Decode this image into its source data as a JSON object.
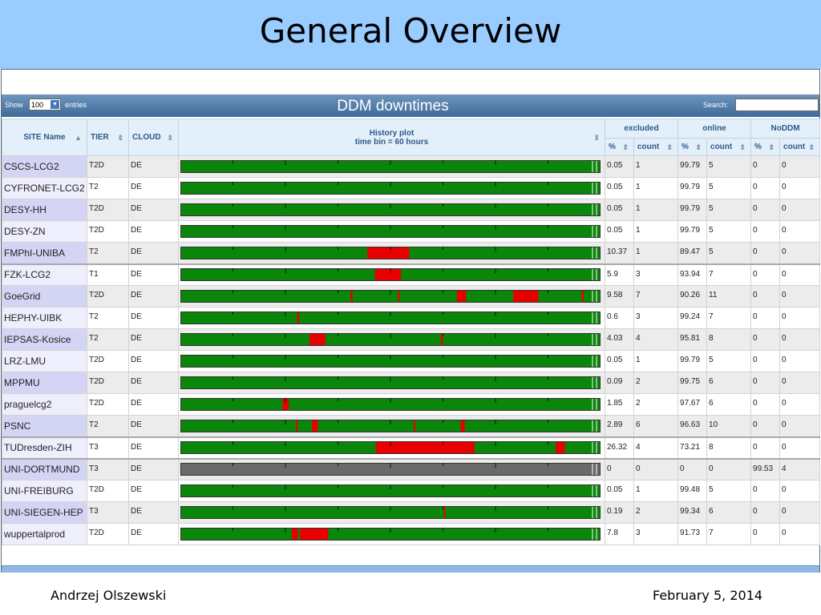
{
  "slide": {
    "title": "General Overview",
    "author": "Andrzej Olszewski",
    "date": "February 5, 2014"
  },
  "toolbar": {
    "show_label": "Show",
    "entries_value": "100",
    "entries_label": "entries",
    "panel_title": "DDM downtimes",
    "search_label": "Search:"
  },
  "table": {
    "headers": {
      "site": "SITE Name",
      "tier": "TIER",
      "cloud": "CLOUD",
      "plot_line1": "History plot",
      "plot_line2": "time bin = 60 hours",
      "excluded": "excluded",
      "online": "online",
      "noddm": "NoDDM",
      "pct": "%",
      "count": "count"
    },
    "colors": {
      "ok": "#0a860a",
      "down": "#e80000",
      "noddm": "#6a6a6a"
    },
    "rows": [
      {
        "site": "CSCS-LCG2",
        "tier": "T2D",
        "cloud": "DE",
        "ex_pct": "0.05",
        "ex_count": "1",
        "on_pct": "99.79",
        "on_count": "5",
        "nd_pct": "0",
        "nd_count": "0",
        "base": "ok",
        "down": []
      },
      {
        "site": "CYFRONET-LCG2",
        "tier": "T2",
        "cloud": "DE",
        "ex_pct": "0.05",
        "ex_count": "1",
        "on_pct": "99.79",
        "on_count": "5",
        "nd_pct": "0",
        "nd_count": "0",
        "base": "ok",
        "down": []
      },
      {
        "site": "DESY-HH",
        "tier": "T2D",
        "cloud": "DE",
        "ex_pct": "0.05",
        "ex_count": "1",
        "on_pct": "99.79",
        "on_count": "5",
        "nd_pct": "0",
        "nd_count": "0",
        "base": "ok",
        "down": []
      },
      {
        "site": "DESY-ZN",
        "tier": "T2D",
        "cloud": "DE",
        "ex_pct": "0.05",
        "ex_count": "1",
        "on_pct": "99.79",
        "on_count": "5",
        "nd_pct": "0",
        "nd_count": "0",
        "base": "ok",
        "down": []
      },
      {
        "site": "FMPhI-UNIBA",
        "tier": "T2",
        "cloud": "DE",
        "ex_pct": "10.37",
        "ex_count": "1",
        "on_pct": "89.47",
        "on_count": "5",
        "nd_pct": "0",
        "nd_count": "0",
        "base": "ok",
        "down": [
          [
            0.445,
            0.545
          ]
        ]
      },
      {
        "site": "FZK-LCG2",
        "tier": "T1",
        "cloud": "DE",
        "ex_pct": "5.9",
        "ex_count": "3",
        "on_pct": "93.94",
        "on_count": "7",
        "nd_pct": "0",
        "nd_count": "0",
        "base": "ok",
        "down": [
          [
            0.463,
            0.525
          ]
        ]
      },
      {
        "site": "GoeGrid",
        "tier": "T2D",
        "cloud": "DE",
        "ex_pct": "9.58",
        "ex_count": "7",
        "on_pct": "90.26",
        "on_count": "11",
        "nd_pct": "0",
        "nd_count": "0",
        "base": "ok",
        "down": [
          [
            0.405,
            0.41
          ],
          [
            0.518,
            0.522
          ],
          [
            0.658,
            0.68
          ],
          [
            0.792,
            0.852
          ],
          [
            0.955,
            0.96
          ]
        ]
      },
      {
        "site": "HEPHY-UIBK",
        "tier": "T2",
        "cloud": "DE",
        "ex_pct": "0.6",
        "ex_count": "3",
        "on_pct": "99.24",
        "on_count": "7",
        "nd_pct": "0",
        "nd_count": "0",
        "base": "ok",
        "down": [
          [
            0.278,
            0.283
          ]
        ]
      },
      {
        "site": "IEPSAS-Kosice",
        "tier": "T2",
        "cloud": "DE",
        "ex_pct": "4.03",
        "ex_count": "4",
        "on_pct": "95.81",
        "on_count": "8",
        "nd_pct": "0",
        "nd_count": "0",
        "base": "ok",
        "down": [
          [
            0.307,
            0.345
          ],
          [
            0.62,
            0.625
          ]
        ]
      },
      {
        "site": "LRZ-LMU",
        "tier": "T2D",
        "cloud": "DE",
        "ex_pct": "0.05",
        "ex_count": "1",
        "on_pct": "99.79",
        "on_count": "5",
        "nd_pct": "0",
        "nd_count": "0",
        "base": "ok",
        "down": []
      },
      {
        "site": "MPPMU",
        "tier": "T2D",
        "cloud": "DE",
        "ex_pct": "0.09",
        "ex_count": "2",
        "on_pct": "99.75",
        "on_count": "6",
        "nd_pct": "0",
        "nd_count": "0",
        "base": "ok",
        "down": []
      },
      {
        "site": "praguelcg2",
        "tier": "T2D",
        "cloud": "DE",
        "ex_pct": "1.85",
        "ex_count": "2",
        "on_pct": "97.67",
        "on_count": "6",
        "nd_pct": "0",
        "nd_count": "0",
        "base": "ok",
        "down": [
          [
            0.243,
            0.258
          ]
        ]
      },
      {
        "site": "PSNC",
        "tier": "T2",
        "cloud": "DE",
        "ex_pct": "2.89",
        "ex_count": "6",
        "on_pct": "96.63",
        "on_count": "10",
        "nd_pct": "0",
        "nd_count": "0",
        "base": "ok",
        "down": [
          [
            0.275,
            0.279
          ],
          [
            0.313,
            0.327
          ],
          [
            0.555,
            0.559
          ],
          [
            0.667,
            0.677
          ]
        ]
      },
      {
        "site": "TUDresden-ZIH",
        "tier": "T3",
        "cloud": "DE",
        "ex_pct": "26.32",
        "ex_count": "4",
        "on_pct": "73.21",
        "on_count": "8",
        "nd_pct": "0",
        "nd_count": "0",
        "base": "ok",
        "down": [
          [
            0.465,
            0.7
          ],
          [
            0.893,
            0.915
          ]
        ]
      },
      {
        "site": "UNI-DORTMUND",
        "tier": "T3",
        "cloud": "DE",
        "ex_pct": "0",
        "ex_count": "0",
        "on_pct": "0",
        "on_count": "0",
        "nd_pct": "99.53",
        "nd_count": "4",
        "base": "noddm",
        "down": []
      },
      {
        "site": "UNI-FREIBURG",
        "tier": "T2D",
        "cloud": "DE",
        "ex_pct": "0.05",
        "ex_count": "1",
        "on_pct": "99.48",
        "on_count": "5",
        "nd_pct": "0",
        "nd_count": "0",
        "base": "ok",
        "down": []
      },
      {
        "site": "UNI-SIEGEN-HEP",
        "tier": "T3",
        "cloud": "DE",
        "ex_pct": "0.19",
        "ex_count": "2",
        "on_pct": "99.34",
        "on_count": "6",
        "nd_pct": "0",
        "nd_count": "0",
        "base": "ok",
        "down": [
          [
            0.627,
            0.631
          ]
        ]
      },
      {
        "site": "wuppertalprod",
        "tier": "T2D",
        "cloud": "DE",
        "ex_pct": "7.8",
        "ex_count": "3",
        "on_pct": "91.73",
        "on_count": "7",
        "nd_pct": "0",
        "nd_count": "0",
        "base": "ok",
        "down": [
          [
            0.265,
            0.28
          ],
          [
            0.285,
            0.352
          ]
        ]
      }
    ]
  }
}
